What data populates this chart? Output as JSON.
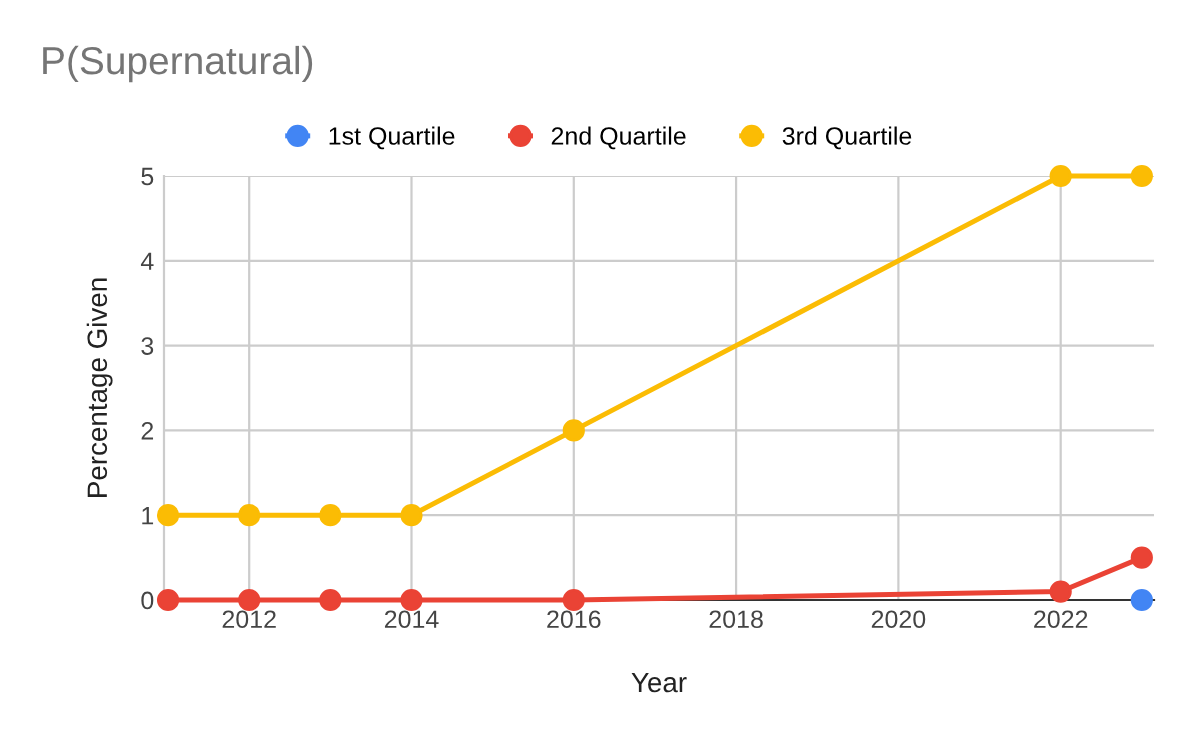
{
  "chart_data": {
    "type": "line",
    "title": "P(Supernatural)",
    "xlabel": "Year",
    "ylabel": "Percentage Given",
    "x": [
      2011,
      2012,
      2013,
      2014,
      2016,
      2022,
      2023
    ],
    "series": [
      {
        "name": "1st Quartile",
        "color": "#4285f4",
        "values": [
          null,
          null,
          null,
          null,
          null,
          null,
          0
        ]
      },
      {
        "name": "2nd Quartile",
        "color": "#ea4335",
        "values": [
          0,
          0,
          0,
          0,
          0,
          0.1,
          0.5
        ]
      },
      {
        "name": "3rd Quartile",
        "color": "#fbbc04",
        "values": [
          1,
          1,
          1,
          1,
          2,
          5,
          5
        ]
      }
    ],
    "xlim": [
      2010.95,
      2023.15
    ],
    "xticks": [
      2012,
      2014,
      2016,
      2018,
      2020,
      2022
    ],
    "ylim": [
      0,
      5
    ],
    "yticks": [
      0,
      1,
      2,
      3,
      4,
      5
    ],
    "grid": true,
    "legend": "top",
    "marker": "circle",
    "line_style": "solid"
  }
}
